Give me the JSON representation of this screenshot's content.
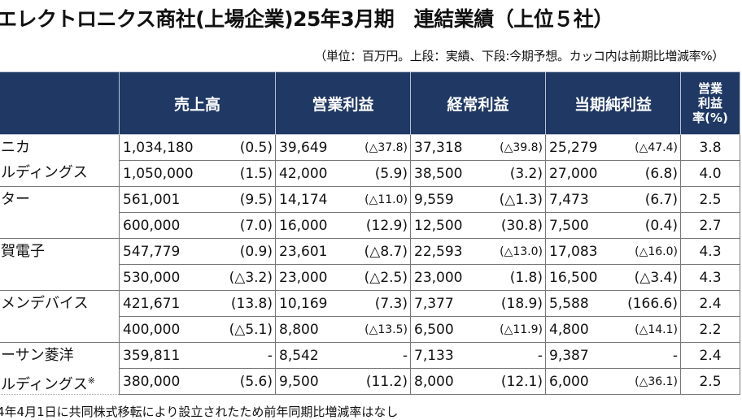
{
  "title": "エレクトロニクス商社(上場企業)25年3月期　連結業績（上位５社）",
  "unit_note": "（単位：百万円。上段：実績、下段:今期予想。カッコ内は前期比増減率%）",
  "headers": {
    "sales": "売上高",
    "op_income": "営業利益",
    "ord_income": "経常利益",
    "net_income": "当期純利益",
    "margin_l1": "営業",
    "margin_l2": "利益",
    "margin_l3": "率(%)"
  },
  "companies": [
    {
      "name_l1": "ニカ",
      "name_l2": "ルディングス",
      "rows": [
        {
          "sales": "1,034,180",
          "sales_c": "(0.5)",
          "op": "39,649",
          "op_c": "(△37.8)",
          "ord": "37,318",
          "ord_c": "(△39.8)",
          "net": "25,279",
          "net_c": "(△47.4)",
          "margin": "3.8"
        },
        {
          "sales": "1,050,000",
          "sales_c": "(1.5)",
          "op": "42,000",
          "op_c": "(5.9)",
          "ord": "38,500",
          "ord_c": "(3.2)",
          "net": "27,000",
          "net_c": "(6.8)",
          "margin": "4.0"
        }
      ]
    },
    {
      "name_l1": "ター",
      "name_l2": "",
      "rows": [
        {
          "sales": "561,001",
          "sales_c": "(9.5)",
          "op": "14,174",
          "op_c": "(△11.0)",
          "ord": "9,559",
          "ord_c": "(△1.3)",
          "net": "7,473",
          "net_c": "(6.7)",
          "margin": "2.5"
        },
        {
          "sales": "600,000",
          "sales_c": "(7.0)",
          "op": "16,000",
          "op_c": "(12.9)",
          "ord": "12,500",
          "ord_c": "(30.8)",
          "net": "7,500",
          "net_c": "(0.4)",
          "margin": "2.7"
        }
      ]
    },
    {
      "name_l1": "賀電子",
      "name_l2": "",
      "rows": [
        {
          "sales": "547,779",
          "sales_c": "(0.9)",
          "op": "23,601",
          "op_c": "(△8.7)",
          "ord": "22,593",
          "ord_c": "(△13.0)",
          "net": "17,083",
          "net_c": "(△16.0)",
          "margin": "4.3"
        },
        {
          "sales": "530,000",
          "sales_c": "(△3.2)",
          "op": "23,000",
          "op_c": "(△2.5)",
          "ord": "23,000",
          "ord_c": "(1.8)",
          "net": "16,500",
          "net_c": "(△3.4)",
          "margin": "4.3"
        }
      ]
    },
    {
      "name_l1": "メンデバイス",
      "name_l2": "",
      "rows": [
        {
          "sales": "421,671",
          "sales_c": "(13.8)",
          "op": "10,169",
          "op_c": "(7.3)",
          "ord": "7,377",
          "ord_c": "(18.9)",
          "net": "5,588",
          "net_c": "(166.6)",
          "margin": "2.4"
        },
        {
          "sales": "400,000",
          "sales_c": "(△5.1)",
          "op": "8,800",
          "op_c": "(△13.5)",
          "ord": "6,500",
          "ord_c": "(△11.9)",
          "net": "4,800",
          "net_c": "(△14.1)",
          "margin": "2.2"
        }
      ]
    },
    {
      "name_l1": "ーサン菱洋",
      "name_l2": "ルディングス",
      "name_sup": "※",
      "rows": [
        {
          "sales": "359,811",
          "sales_c": "-",
          "op": "8,542",
          "op_c": "-",
          "ord": "7,133",
          "ord_c": "-",
          "net": "9,387",
          "net_c": "-",
          "margin": "2.4"
        },
        {
          "sales": "380,000",
          "sales_c": "(5.6)",
          "op": "9,500",
          "op_c": "(11.2)",
          "ord": "8,000",
          "ord_c": "(12.1)",
          "net": "6,000",
          "net_c": "(△36.1)",
          "margin": "2.5"
        }
      ]
    }
  ],
  "footnote": "4年4月1日に共同株式移転により設立されたため前年同期比増減率はなし"
}
